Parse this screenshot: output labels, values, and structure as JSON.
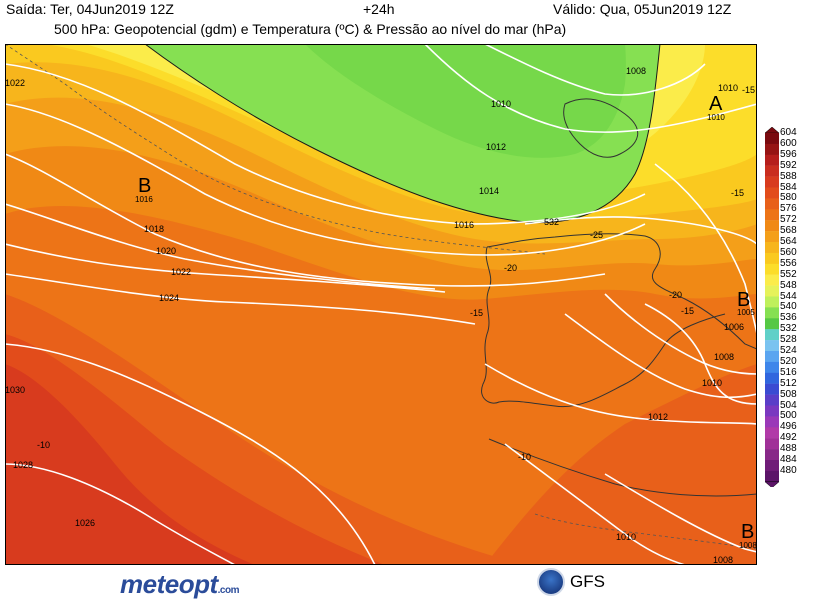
{
  "header": {
    "run_label": "Saída: Ter, 04Jun2019 12Z",
    "forecast_step": "+24h",
    "valid_label": "Válido: Qua, 05Jun2019 12Z",
    "title": "500 hPa: Geopotencial (gdm) e Temperatura (ºC) & Pressão ao nível do mar (hPa)"
  },
  "colorbar": {
    "labels": [
      "604",
      "600",
      "596",
      "592",
      "588",
      "584",
      "580",
      "576",
      "572",
      "568",
      "564",
      "560",
      "556",
      "552",
      "548",
      "544",
      "540",
      "536",
      "532",
      "528",
      "524",
      "520",
      "516",
      "512",
      "508",
      "504",
      "500",
      "496",
      "492",
      "488",
      "484",
      "480"
    ],
    "colors": [
      "#7a0a0f",
      "#961414",
      "#b51e1c",
      "#c92d1f",
      "#d83b1e",
      "#e24c1b",
      "#e8601a",
      "#ed7417",
      "#f08915",
      "#f49f19",
      "#f7b51c",
      "#fac91f",
      "#fcdd2a",
      "#fbec4a",
      "#e6f25a",
      "#bff05c",
      "#86e052",
      "#55c844",
      "#60d0c8",
      "#7ac3f0",
      "#5aa5f0",
      "#3e86ea",
      "#3066de",
      "#3a4bd2",
      "#5a3ec8",
      "#7a38c0",
      "#9a38b8",
      "#b13aa8",
      "#a03098",
      "#882888",
      "#701c78",
      "#5c1468"
    ]
  },
  "map_labels": {
    "highs": [
      "A"
    ],
    "lows": [
      "B",
      "B",
      "B"
    ],
    "high_value": "1010",
    "low_values": [
      "1016",
      "1005",
      "1008"
    ],
    "isobars": [
      "1008",
      "1010",
      "1010",
      "1012",
      "1014",
      "1016",
      "1018",
      "1020",
      "1022",
      "1024",
      "1006",
      "1008",
      "1010",
      "1012",
      "1010",
      "1008",
      "1028",
      "1026",
      "1022",
      "1030"
    ],
    "temps": [
      "-15",
      "-25",
      "-20",
      "-15",
      "-20",
      "-15",
      "-10",
      "-10",
      "-15"
    ],
    "geopotential": [
      "532"
    ]
  },
  "footer": {
    "logo_text": "meteopt",
    "logo_suffix": ".com",
    "model": "GFS"
  }
}
